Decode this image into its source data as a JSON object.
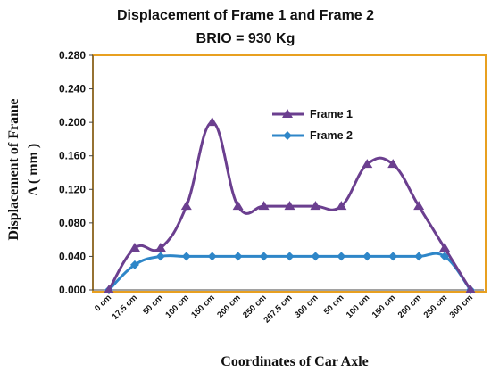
{
  "chart_data": {
    "type": "line",
    "title": "Displacement of Frame 1 and Frame 2",
    "subtitle": "BRIO  = 930 Kg",
    "xlabel": "Coordinates of Car Axle",
    "ylabel_line1": "Displacement of Frame",
    "ylabel_line2": "Δ  ( mm )",
    "categories": [
      "0 cm",
      "17.5 cm",
      "50 cm",
      "100 cm",
      "150 cm",
      "200 cm",
      "250 cm",
      "267.5 cm",
      "300 cm",
      "50 cm",
      "100 cm",
      "150 cm",
      "200 cm",
      "250 cm",
      "300 cm"
    ],
    "ylim": [
      0,
      0.28
    ],
    "yticks": [
      "0.000",
      "0.040",
      "0.080",
      "0.120",
      "0.160",
      "0.200",
      "0.240",
      "0.280"
    ],
    "grid": false,
    "legend_position": "upper-center",
    "series": [
      {
        "name": "Frame 1",
        "color": "#6b3f8f",
        "marker": "triangle",
        "values": [
          0,
          0.05,
          0.05,
          0.1,
          0.2,
          0.1,
          0.1,
          0.1,
          0.1,
          0.1,
          0.15,
          0.15,
          0.1,
          0.05,
          0
        ]
      },
      {
        "name": "Frame 2",
        "color": "#2e86c8",
        "marker": "diamond",
        "values": [
          0,
          0.03,
          0.04,
          0.04,
          0.04,
          0.04,
          0.04,
          0.04,
          0.04,
          0.04,
          0.04,
          0.04,
          0.04,
          0.04,
          0
        ]
      }
    ],
    "plot_background": "#ffffff",
    "plot_border_color": "#e8a020"
  }
}
